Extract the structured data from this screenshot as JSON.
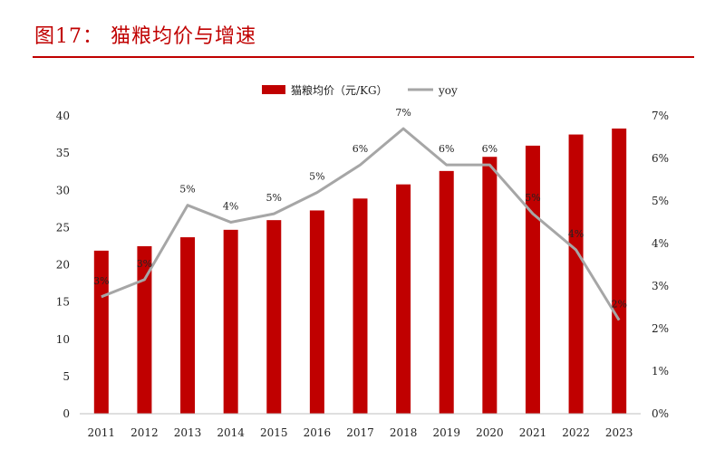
{
  "figure": {
    "title": "图17：  猫粮均价与增速"
  },
  "colors": {
    "accent": "#c00000",
    "bar": "#c00000",
    "line": "#a6a6a6"
  },
  "chart_data": {
    "type": "bar",
    "title": "",
    "categories": [
      "2011",
      "2012",
      "2013",
      "2014",
      "2015",
      "2016",
      "2017",
      "2018",
      "2019",
      "2020",
      "2021",
      "2022",
      "2023"
    ],
    "series": [
      {
        "name": "猫粮均价（元/KG）",
        "type": "bar",
        "axis": "left",
        "values": [
          21.9,
          22.5,
          23.7,
          24.7,
          26.0,
          27.3,
          28.9,
          30.8,
          32.6,
          34.5,
          36.0,
          37.5,
          38.3
        ]
      },
      {
        "name": "yoy",
        "type": "line",
        "axis": "right",
        "values": [
          2.75,
          3.15,
          4.9,
          4.5,
          4.7,
          5.2,
          5.85,
          6.7,
          5.85,
          5.85,
          4.7,
          3.85,
          2.2
        ],
        "labels": [
          "3%",
          "3%",
          "5%",
          "4%",
          "5%",
          "5%",
          "6%",
          "7%",
          "6%",
          "6%",
          "5%",
          "4%",
          "2%"
        ]
      }
    ],
    "y_left": {
      "min": 0,
      "max": 40,
      "ticks": [
        "0",
        "5",
        "10",
        "15",
        "20",
        "25",
        "30",
        "35",
        "40"
      ]
    },
    "y_right": {
      "min": 0,
      "max": 7,
      "ticks": [
        "0%",
        "1%",
        "2%",
        "3%",
        "4%",
        "5%",
        "6%",
        "7%"
      ]
    },
    "legend_position": "top-center",
    "grid": false
  }
}
